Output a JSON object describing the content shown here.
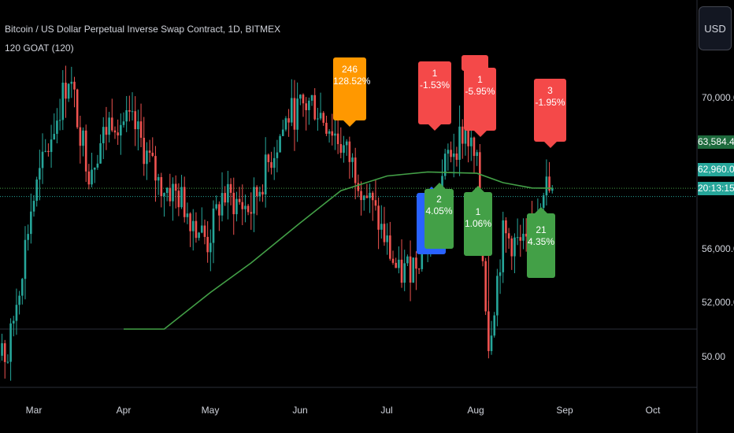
{
  "header": {
    "title": "Bitcoin / US Dollar Perpetual Inverse Swap Contract, 1D, BITMEX",
    "indicator": "120 GOAT (120)"
  },
  "currency_button": "USD",
  "price_axis": {
    "ticks": [
      "70,000.0",
      "56,000.0",
      "52,000.0"
    ],
    "indicator_tick": "50.00",
    "tags": [
      {
        "text": "63,584.4",
        "color": "#1e6b3d",
        "text_color": "#ffffff"
      },
      {
        "text": "62,960.0",
        "color": "#26a69a",
        "text_color": "#ffffff"
      },
      {
        "text": "20:13:15",
        "color": "#26a69a",
        "text_color": "#ffffff"
      }
    ]
  },
  "time_axis": {
    "ticks": [
      "Mar",
      "Apr",
      "May",
      "Jun",
      "Jul",
      "Aug",
      "Sep",
      "Oct"
    ]
  },
  "colors": {
    "up": "#26a69a",
    "down": "#ef5350",
    "ma": "#43a047",
    "label_red": "#f44949",
    "label_green": "#43a047",
    "label_orange": "#ff9800",
    "label_blue": "#2962ff"
  },
  "labels": [
    {
      "id": "label-orange",
      "line1": "246",
      "line2": "128.52%",
      "color": "orange",
      "dir": "down"
    },
    {
      "id": "label-red-1",
      "line1": "1",
      "line2": "-1.53%",
      "color": "red",
      "dir": "down"
    },
    {
      "id": "label-red-2",
      "line1": "1",
      "line2": "-5.95%",
      "color": "red",
      "dir": "down"
    },
    {
      "id": "label-red-3",
      "line1": "3",
      "line2": "-1.95%",
      "color": "red",
      "dir": "down"
    },
    {
      "id": "label-blue",
      "line1": "",
      "line2": "-0",
      "color": "blue",
      "dir": "up"
    },
    {
      "id": "label-green-1",
      "line1": "2",
      "line2": "4.05%",
      "color": "green",
      "dir": "up"
    },
    {
      "id": "label-green-2",
      "line1": "1",
      "line2": "1.06%",
      "color": "green",
      "dir": "up"
    },
    {
      "id": "label-green-3",
      "line1": "21",
      "line2": "4.35%",
      "color": "green",
      "dir": "up"
    }
  ],
  "chart_data": {
    "type": "candlestick",
    "symbol": "Bitcoin / US Dollar Perpetual Inverse Swap Contract",
    "interval": "1D",
    "exchange": "BITMEX",
    "last_price": 62960.0,
    "ma_value": 63584.4,
    "series": [
      {
        "name": "120 GOAT (120)",
        "type": "line",
        "points": [
          [
            "Apr 01",
            50000
          ],
          [
            "Apr 15",
            52500
          ],
          [
            "May 01",
            55800
          ],
          [
            "May 15",
            58000
          ],
          [
            "Jun 01",
            61000
          ],
          [
            "Jun 15",
            63400
          ],
          [
            "Jul 01",
            64500
          ],
          [
            "Jul 15",
            64800
          ],
          [
            "Aug 01",
            64700
          ],
          [
            "Aug 10",
            64000
          ],
          [
            "Aug 20",
            63600
          ],
          [
            "Aug 27",
            63584.4
          ]
        ]
      }
    ],
    "price_anchors": [
      [
        "Feb 20",
        51000
      ],
      [
        "Feb 28",
        62000
      ],
      [
        "Mar 05",
        66000
      ],
      [
        "Mar 13",
        72000
      ],
      [
        "Mar 20",
        65000
      ],
      [
        "Mar 28",
        69000
      ],
      [
        "Apr 05",
        68000
      ],
      [
        "Apr 13",
        64000
      ],
      [
        "Apr 20",
        63000
      ],
      [
        "Apr 30",
        59500
      ],
      [
        "May 05",
        63000
      ],
      [
        "May 15",
        62000
      ],
      [
        "May 22",
        66000
      ],
      [
        "May 28",
        69000
      ],
      [
        "Jun 05",
        70000
      ],
      [
        "Jun 12",
        68000
      ],
      [
        "Jun 20",
        65000
      ],
      [
        "Jun 28",
        61000
      ],
      [
        "Jul 05",
        57000
      ],
      [
        "Jul 10",
        58000
      ],
      [
        "Jul 15",
        60000
      ],
      [
        "Jul 22",
        66000
      ],
      [
        "Jul 28",
        68000
      ],
      [
        "Aug 01",
        65000
      ],
      [
        "Aug 05",
        52000
      ],
      [
        "Aug 10",
        60000
      ],
      [
        "Aug 18",
        59000
      ],
      [
        "Aug 24",
        64000
      ],
      [
        "Aug 27",
        62960
      ]
    ]
  }
}
